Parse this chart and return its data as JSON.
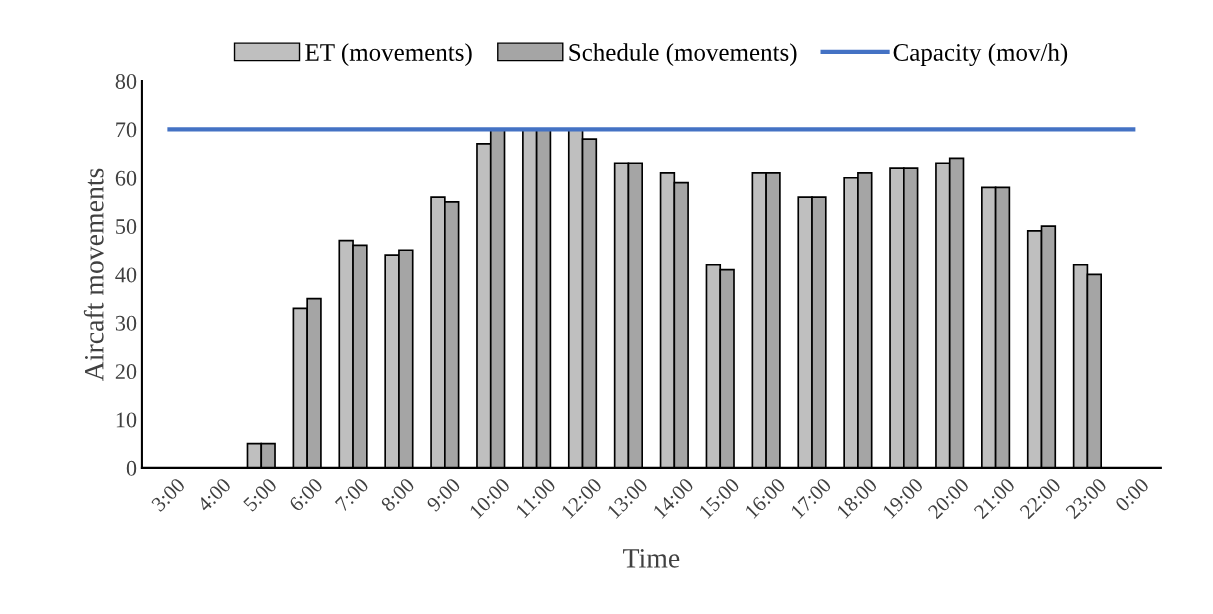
{
  "chart_data": {
    "type": "bar",
    "xlabel": "Time",
    "ylabel": "Aircaft movements",
    "categories": [
      "3:00",
      "4:00",
      "5:00",
      "6:00",
      "7:00",
      "8:00",
      "9:00",
      "10:00",
      "11:00",
      "12:00",
      "13:00",
      "14:00",
      "15:00",
      "16:00",
      "17:00",
      "18:00",
      "19:00",
      "20:00",
      "21:00",
      "22:00",
      "23:00",
      "0:00"
    ],
    "series": [
      {
        "name": "ET (movements)",
        "color": "#bfbfbf",
        "values": [
          0,
          0,
          5,
          33,
          47,
          44,
          56,
          67,
          70,
          70,
          63,
          61,
          42,
          61,
          56,
          60,
          62,
          63,
          58,
          49,
          42,
          0
        ]
      },
      {
        "name": "Schedule (movements)",
        "color": "#a5a5a5",
        "values": [
          0,
          0,
          5,
          35,
          46,
          45,
          55,
          70,
          70,
          68,
          63,
          59,
          41,
          61,
          56,
          61,
          62,
          64,
          58,
          50,
          40,
          0
        ]
      },
      {
        "name": "Capacity (mov/h)",
        "color": "#4472c4",
        "type": "line",
        "values": [
          70,
          70,
          70,
          70,
          70,
          70,
          70,
          70,
          70,
          70,
          70,
          70,
          70,
          70,
          70,
          70,
          70,
          70,
          70,
          70,
          70,
          70
        ]
      }
    ],
    "ylim": [
      0,
      80
    ],
    "yticks": [
      0,
      10,
      20,
      30,
      40,
      50,
      60,
      70,
      80
    ],
    "grid": false,
    "legend": "top",
    "marker": "none",
    "line_style": "solid"
  }
}
